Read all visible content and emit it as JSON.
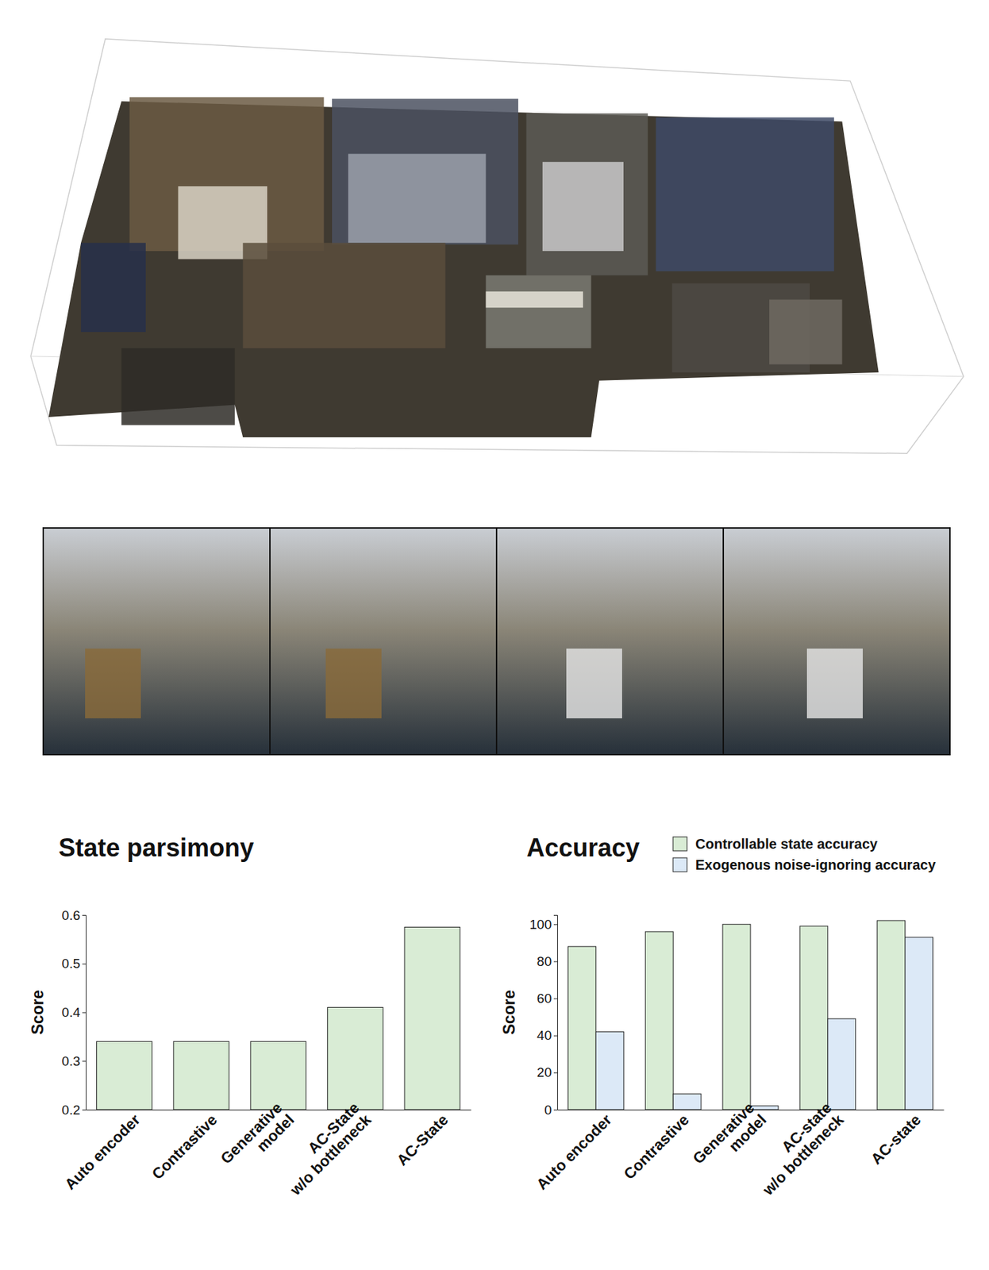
{
  "chart_data": [
    {
      "type": "bar",
      "title": "State parsimony",
      "y_label": "Score",
      "categories": [
        "Auto encoder",
        "Contrastive",
        "Generative\nmodel",
        "AC-State\nw/o bottleneck",
        "AC-State"
      ],
      "values": [
        0.34,
        0.34,
        0.34,
        0.41,
        0.575
      ],
      "color": "#d9ecd5",
      "ylim": [
        0.2,
        0.6
      ],
      "yticks": [
        0.2,
        0.3,
        0.4,
        0.5,
        0.6
      ]
    },
    {
      "type": "bar",
      "title": "Accuracy",
      "y_label": "Score",
      "categories": [
        "Auto encoder",
        "Contrastive",
        "Generative\nmodel",
        "AC-state\nw/o bottleneck",
        "AC-state"
      ],
      "series": [
        {
          "name": "Controllable state accuracy",
          "color": "#d9ecd5",
          "values": [
            88,
            96,
            100,
            99,
            102
          ]
        },
        {
          "name": "Exogenous noise-ignoring accuracy",
          "color": "#dce9f7",
          "values": [
            42,
            8.5,
            2,
            49,
            93
          ]
        }
      ],
      "ylim": [
        0,
        105
      ],
      "yticks": [
        0,
        20,
        40,
        60,
        80,
        100
      ],
      "legend": "top-right"
    }
  ]
}
